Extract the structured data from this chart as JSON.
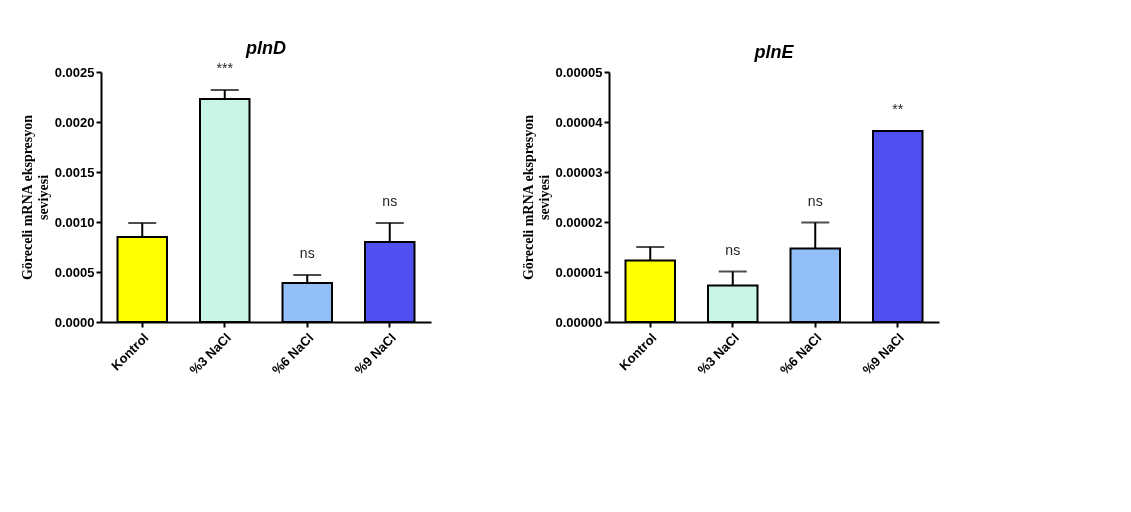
{
  "chart_data": [
    {
      "type": "bar",
      "title": "plnD",
      "ylabel": "Göreceli mRNA ekspresyon seviyesi",
      "categories": [
        "Kontrol",
        "%3 NaCl",
        "%6 NaCl",
        "%9 NaCl"
      ],
      "values": [
        0.00085,
        0.00223,
        0.00039,
        0.0008
      ],
      "colors": [
        "#ffff00",
        "#c8f5e6",
        "#92bff8",
        "#5050f0"
      ],
      "errors": [
        [
          0.00085,
          0.00099
        ],
        [
          0.00223,
          0.00232
        ],
        [
          0.00039,
          0.00047
        ],
        [
          0.0008,
          0.00099
        ]
      ],
      "ylim": [
        0,
        0.0025
      ],
      "yticks": [
        {
          "value": 0,
          "label": "0.0000"
        },
        {
          "value": 0.0005,
          "label": "0.0005"
        },
        {
          "value": 0.001,
          "label": "0.0010"
        },
        {
          "value": 0.0015,
          "label": "0.0015"
        },
        {
          "value": 0.002,
          "label": "0.0020"
        },
        {
          "value": 0.0025,
          "label": "0.0025"
        }
      ],
      "annotations": [
        {
          "text": "***",
          "x": "%3 NaCl",
          "y": 0.00232
        },
        {
          "text": "ns",
          "x": "%6 NaCl",
          "y": 0.00047
        },
        {
          "text": "ns",
          "x": "%9 NaCl",
          "y": 0.00099
        }
      ],
      "grid": false
    },
    {
      "type": "bar",
      "title": "plnE",
      "ylabel": "Göreceli mRNA ekspresyon seviyesi",
      "categories": [
        "Kontrol",
        "%3 NaCl",
        "%6 NaCl",
        "%9 NaCl"
      ],
      "values": [
        1.23e-05,
        7.3e-06,
        1.47e-05,
        3.82e-05
      ],
      "colors": [
        "#ffff00",
        "#c8f5e6",
        "#92bff8",
        "#5050f0"
      ],
      "errors": [
        [
          1.23e-05,
          1.5e-05
        ],
        [
          7.3e-06,
          1.01e-05
        ],
        [
          1.47e-05,
          1.99e-05
        ],
        null
      ],
      "ylim": [
        0,
        5e-05
      ],
      "yticks": [
        {
          "value": 0,
          "label": "0.00000"
        },
        {
          "value": 1e-05,
          "label": "0.00001"
        },
        {
          "value": 2e-05,
          "label": "0.00002"
        },
        {
          "value": 3e-05,
          "label": "0.00003"
        },
        {
          "value": 4e-05,
          "label": "0.00004"
        },
        {
          "value": 5e-05,
          "label": "0.00005"
        }
      ],
      "annotations": [
        {
          "text": "ns",
          "x": "%3 NaCl",
          "y": 1.01e-05
        },
        {
          "text": "ns",
          "x": "%6 NaCl",
          "y": 1.99e-05
        },
        {
          "text": "**",
          "x": "%9 NaCl",
          "y": 3.82e-05
        }
      ],
      "grid": false
    }
  ]
}
